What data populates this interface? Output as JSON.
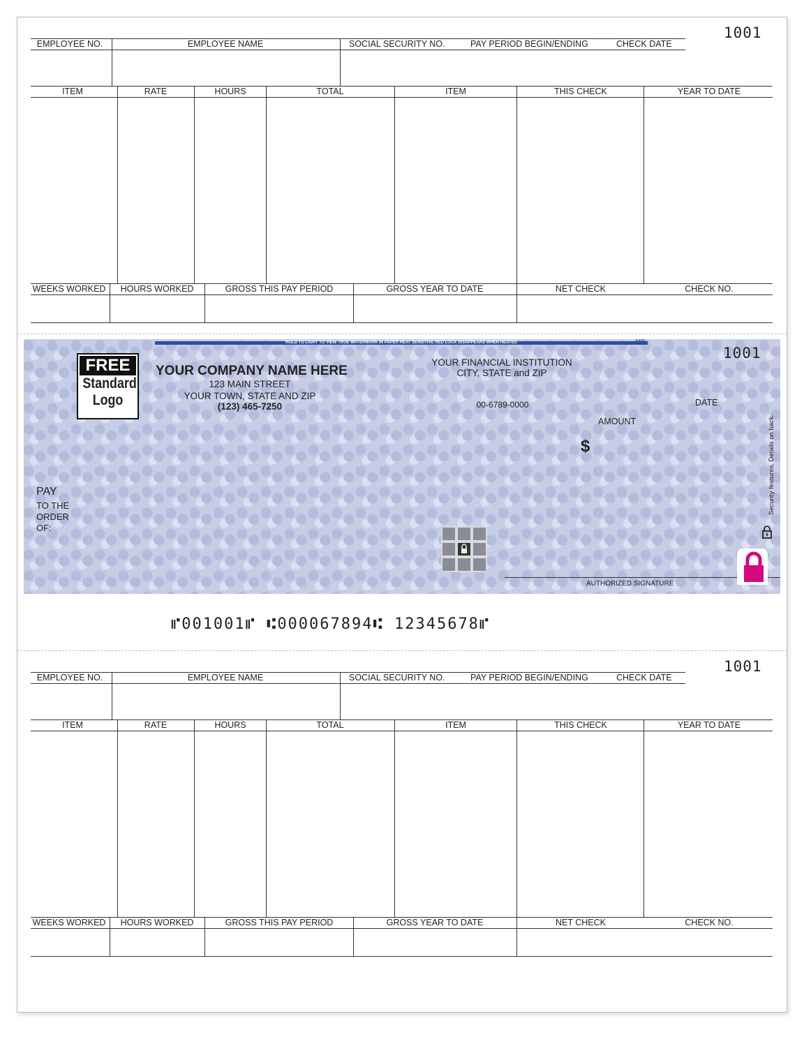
{
  "check_number": "1001",
  "stub": {
    "header": [
      "EMPLOYEE NO.",
      "EMPLOYEE NAME",
      "SOCIAL SECURITY NO.",
      "PAY PERIOD BEGIN/ENDING",
      "CHECK DATE"
    ],
    "columns": [
      "ITEM",
      "RATE",
      "HOURS",
      "TOTAL",
      "ITEM",
      "THIS CHECK",
      "YEAR TO DATE"
    ],
    "footer": [
      "WEEKS WORKED",
      "HOURS WORKED",
      "GROSS THIS PAY PERIOD",
      "GROSS YEAR TO DATE",
      "NET CHECK",
      "CHECK NO."
    ]
  },
  "check": {
    "security_band": "HOLD TO LIGHT TO VIEW TRUE WATERMARK IN PAPER     HEAT SENSITIVE RED LOCK DISAPPEARS WHEN HEATED",
    "band_mark": "MP",
    "logo": {
      "line1": "FREE",
      "line2": "Standard",
      "line3": "Logo"
    },
    "company": {
      "name": "YOUR COMPANY NAME HERE",
      "street": "123 MAIN STREET",
      "city": "YOUR TOWN, STATE AND ZIP",
      "phone": "(123) 465-7250"
    },
    "bank": {
      "name": "YOUR FINANCIAL INSTITUTION",
      "city": "CITY, STATE and ZIP",
      "fraction": "00-6789-0000"
    },
    "date_label": "DATE",
    "amount_label": "AMOUNT",
    "dollar": "$",
    "pay_label": [
      "PAY",
      "TO THE",
      "ORDER",
      "OF:"
    ],
    "security_note": "Security features. Details on back.",
    "signature_label": "AUTHORIZED SIGNATURE",
    "lock_color": "#d4087f",
    "micr": "⑈001001⑈ ⑆000067894⑆ 12345678⑈"
  }
}
